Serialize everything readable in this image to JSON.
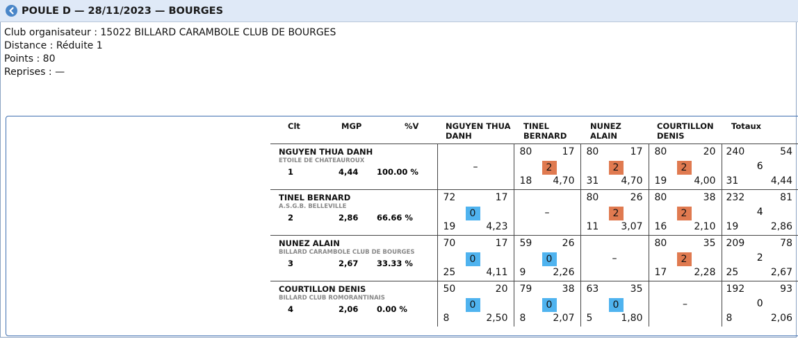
{
  "header": {
    "title": "POULE D — 28/11/2023 — BOURGES"
  },
  "info": [
    "Club organisateur : 15022 BILLARD CARAMBOLE CLUB DE BOURGES",
    "Distance : Réduite 1",
    "Points : 80",
    "Reprises : —"
  ],
  "columns": {
    "clt": "Clt",
    "mgp": "MGP",
    "pv": "%V",
    "players": [
      "NGUYEN THUA DANH",
      "TINEL BERNARD",
      "NUNEZ ALAIN",
      "COURTILLON DENIS"
    ],
    "totals": "Totaux"
  },
  "players": [
    {
      "name": "NGUYEN THUA DANH",
      "club": "ETOILE DE CHATEAUROUX",
      "clt": "1",
      "mgp": "4,44",
      "pv": "100.00 %",
      "cells": [
        {
          "self": true,
          "dash": "–"
        },
        {
          "pts": "80",
          "serie": "17",
          "badge": "2",
          "result": "win",
          "reprises": "18",
          "moy": "4,70"
        },
        {
          "pts": "80",
          "serie": "17",
          "badge": "2",
          "result": "win",
          "reprises": "31",
          "moy": "4,70"
        },
        {
          "pts": "80",
          "serie": "20",
          "badge": "2",
          "result": "win",
          "reprises": "19",
          "moy": "4,00"
        }
      ],
      "totals": {
        "pts": "240",
        "serie": "54",
        "mp": "6",
        "reprises": "31",
        "moy": "4,44"
      }
    },
    {
      "name": "TINEL BERNARD",
      "club": "A.S.G.B. BELLEVILLE",
      "clt": "2",
      "mgp": "2,86",
      "pv": "66.66 %",
      "cells": [
        {
          "pts": "72",
          "serie": "17",
          "badge": "0",
          "result": "loss",
          "reprises": "19",
          "moy": "4,23"
        },
        {
          "self": true,
          "dash": "–"
        },
        {
          "pts": "80",
          "serie": "26",
          "badge": "2",
          "result": "win",
          "reprises": "11",
          "moy": "3,07"
        },
        {
          "pts": "80",
          "serie": "38",
          "badge": "2",
          "result": "win",
          "reprises": "16",
          "moy": "2,10"
        }
      ],
      "totals": {
        "pts": "232",
        "serie": "81",
        "mp": "4",
        "reprises": "19",
        "moy": "2,86"
      }
    },
    {
      "name": "NUNEZ ALAIN",
      "club": "BILLARD CARAMBOLE CLUB DE BOURGES",
      "clt": "3",
      "mgp": "2,67",
      "pv": "33.33 %",
      "cells": [
        {
          "pts": "70",
          "serie": "17",
          "badge": "0",
          "result": "loss",
          "reprises": "25",
          "moy": "4,11"
        },
        {
          "pts": "59",
          "serie": "26",
          "badge": "0",
          "result": "loss",
          "reprises": "9",
          "moy": "2,26"
        },
        {
          "self": true,
          "dash": "–"
        },
        {
          "pts": "80",
          "serie": "35",
          "badge": "2",
          "result": "win",
          "reprises": "17",
          "moy": "2,28"
        }
      ],
      "totals": {
        "pts": "209",
        "serie": "78",
        "mp": "2",
        "reprises": "25",
        "moy": "2,67"
      }
    },
    {
      "name": "COURTILLON DENIS",
      "club": "BILLARD CLUB ROMORANTINAIS",
      "clt": "4",
      "mgp": "2,06",
      "pv": "0.00 %",
      "cells": [
        {
          "pts": "50",
          "serie": "20",
          "badge": "0",
          "result": "loss",
          "reprises": "8",
          "moy": "2,50"
        },
        {
          "pts": "79",
          "serie": "38",
          "badge": "0",
          "result": "loss",
          "reprises": "8",
          "moy": "2,07"
        },
        {
          "pts": "63",
          "serie": "35",
          "badge": "0",
          "result": "loss",
          "reprises": "5",
          "moy": "1,80"
        },
        {
          "self": true,
          "dash": "–"
        }
      ],
      "totals": {
        "pts": "192",
        "serie": "93",
        "mp": "0",
        "reprises": "8",
        "moy": "2,06"
      }
    }
  ],
  "colors": {
    "win": "#e07a50",
    "loss": "#4fb3ef",
    "header_bg": "#dfe9f7",
    "back_icon": "#4a86c8"
  },
  "icons": {
    "back": "back-arrow-icon"
  }
}
